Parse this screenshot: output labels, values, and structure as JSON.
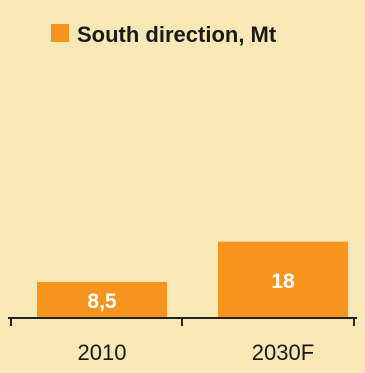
{
  "colors": {
    "panel_background": "#f7e8b6",
    "bar": "#f7941d",
    "axis": "#222222"
  },
  "chart_data": {
    "type": "bar",
    "categories": [
      "2010",
      "2030F"
    ],
    "series": [
      {
        "name": "South direction, Mt",
        "values": [
          8.5,
          18
        ],
        "value_labels": [
          "8,5",
          "18"
        ]
      }
    ],
    "title": "",
    "xlabel": "",
    "ylabel": "",
    "ylim": [
      0,
      75
    ],
    "grid": false,
    "legend": "top"
  }
}
